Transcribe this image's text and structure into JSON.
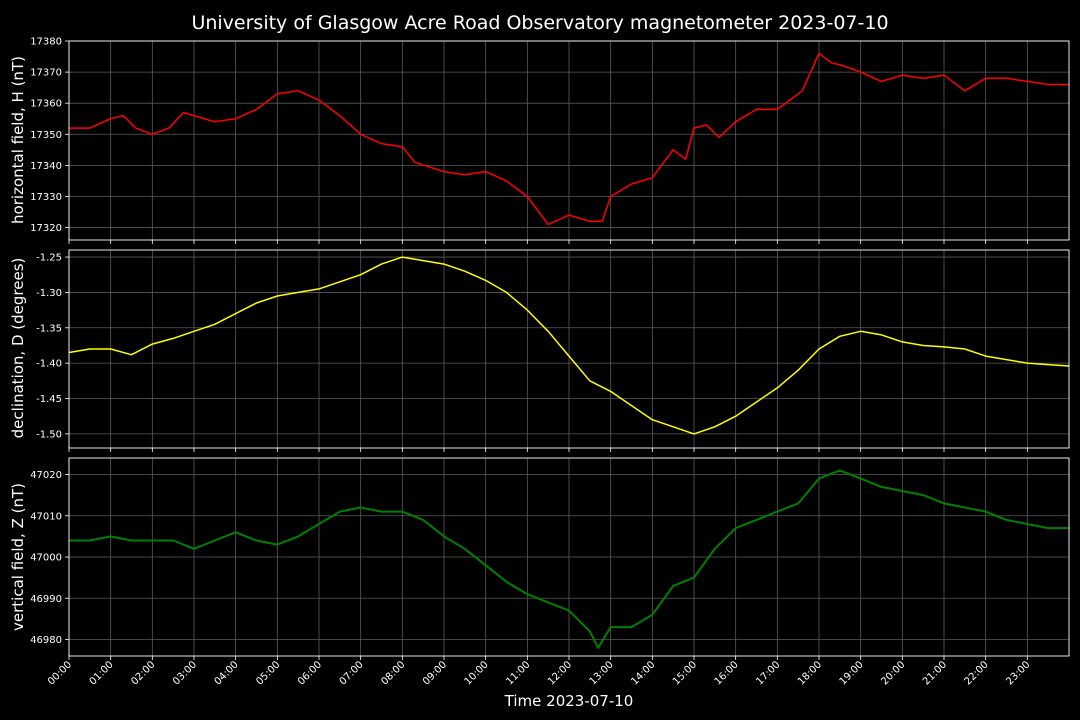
{
  "chart_data": {
    "type": "line",
    "title": "University of Glasgow Acre Road Observatory magnetometer 2023-07-10",
    "xlabel": "Time 2023-07-10",
    "x_ticks": [
      "00:00",
      "01:00",
      "02:00",
      "03:00",
      "04:00",
      "05:00",
      "06:00",
      "07:00",
      "08:00",
      "09:00",
      "10:00",
      "11:00",
      "12:00",
      "13:00",
      "14:00",
      "15:00",
      "16:00",
      "17:00",
      "18:00",
      "19:00",
      "20:00",
      "21:00",
      "22:00",
      "23:00"
    ],
    "xlim_hours": [
      0,
      24
    ],
    "grid": true,
    "background": "#000000",
    "panels": [
      {
        "ylabel": "horizontal field, H (nT)",
        "color": "#ff0000",
        "ylim": [
          17316,
          17380
        ],
        "yticks": [
          "17320",
          "17330",
          "17340",
          "17350",
          "17360",
          "17370",
          "17380"
        ],
        "x": [
          0,
          0.5,
          1,
          1.3,
          1.6,
          2,
          2.4,
          2.75,
          3,
          3.5,
          4,
          4.5,
          5,
          5.5,
          6,
          6.5,
          7,
          7.5,
          8,
          8.3,
          9,
          9.5,
          10,
          10.5,
          11,
          11.5,
          12,
          12.5,
          12.8,
          13,
          13.5,
          14,
          14.5,
          14.8,
          15,
          15.3,
          15.6,
          16,
          16.5,
          17,
          17.3,
          17.6,
          18,
          18.3,
          18.6,
          19,
          19.5,
          20,
          20.5,
          21,
          21.5,
          22,
          22.5,
          23,
          23.5,
          24
        ],
        "y": [
          17352,
          17352,
          17355,
          17356,
          17352,
          17350,
          17352,
          17357,
          17356,
          17354,
          17355,
          17358,
          17363,
          17364,
          17361,
          17356,
          17350,
          17347,
          17346,
          17341,
          17338,
          17337,
          17338,
          17335,
          17330,
          17321,
          17324,
          17322,
          17322,
          17330,
          17334,
          17336,
          17345,
          17342,
          17352,
          17353,
          17349,
          17354,
          17358,
          17358,
          17361,
          17364,
          17376,
          17373,
          17372,
          17370,
          17367,
          17369,
          17368,
          17369,
          17364,
          17368,
          17368,
          17367,
          17366,
          17366
        ]
      },
      {
        "ylabel": "declination, D (degrees)",
        "color": "#ffff00",
        "ylim": [
          -1.52,
          -1.24
        ],
        "yticks": [
          "-1.50",
          "-1.45",
          "-1.40",
          "-1.35",
          "-1.30",
          "-1.25"
        ],
        "x": [
          0,
          0.5,
          1,
          1.5,
          2,
          2.5,
          3,
          3.5,
          4,
          4.5,
          5,
          5.5,
          6,
          6.5,
          7,
          7.5,
          8,
          8.5,
          9,
          9.5,
          10,
          10.5,
          11,
          11.5,
          12,
          12.5,
          13,
          13.5,
          14,
          14.5,
          15,
          15.5,
          16,
          16.5,
          17,
          17.5,
          18,
          18.5,
          19,
          19.5,
          20,
          20.5,
          21,
          21.5,
          22,
          22.5,
          23,
          23.5,
          24
        ],
        "y": [
          -1.385,
          -1.38,
          -1.38,
          -1.388,
          -1.373,
          -1.365,
          -1.355,
          -1.345,
          -1.33,
          -1.315,
          -1.305,
          -1.3,
          -1.295,
          -1.285,
          -1.275,
          -1.26,
          -1.25,
          -1.255,
          -1.26,
          -1.27,
          -1.283,
          -1.3,
          -1.325,
          -1.355,
          -1.39,
          -1.425,
          -1.44,
          -1.46,
          -1.48,
          -1.49,
          -1.5,
          -1.49,
          -1.475,
          -1.455,
          -1.435,
          -1.41,
          -1.38,
          -1.362,
          -1.355,
          -1.36,
          -1.37,
          -1.375,
          -1.377,
          -1.38,
          -1.39,
          -1.395,
          -1.4,
          -1.402,
          -1.404
        ]
      },
      {
        "ylabel": "vertical field, Z (nT)",
        "color": "#008000",
        "ylim": [
          46976,
          47024
        ],
        "yticks": [
          "46980",
          "46990",
          "47000",
          "47010",
          "47020"
        ],
        "x": [
          0,
          0.5,
          1,
          1.5,
          2,
          2.5,
          3,
          3.5,
          4,
          4.5,
          5,
          5.5,
          6,
          6.5,
          7,
          7.5,
          8,
          8.5,
          9,
          9.5,
          10,
          10.5,
          11,
          11.5,
          12,
          12.5,
          12.7,
          13,
          13.5,
          14,
          14.5,
          15,
          15.5,
          16,
          16.5,
          17,
          17.5,
          18,
          18.5,
          19,
          19.5,
          20,
          20.5,
          21,
          21.5,
          22,
          22.5,
          23,
          23.5,
          24
        ],
        "y": [
          47004,
          47004,
          47005,
          47004,
          47004,
          47004,
          47002,
          47004,
          47006,
          47004,
          47003,
          47005,
          47008,
          47011,
          47012,
          47011,
          47011,
          47009,
          47005,
          47002,
          46998,
          46994,
          46991,
          46989,
          46987,
          46982,
          46978,
          46983,
          46983,
          46986,
          46993,
          46995,
          47002,
          47007,
          47009,
          47011,
          47013,
          47019,
          47021,
          47019,
          47017,
          47016,
          47015,
          47013,
          47012,
          47011,
          47009,
          47008,
          47007,
          47007
        ]
      }
    ]
  }
}
